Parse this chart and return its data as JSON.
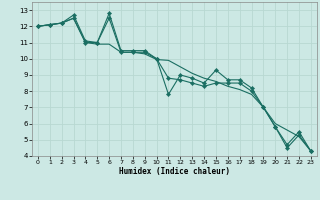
{
  "xlabel": "Humidex (Indice chaleur)",
  "background_color": "#cce8e4",
  "grid_color": "#b8d8d2",
  "line_color": "#1a6e62",
  "xlim": [
    -0.5,
    23.5
  ],
  "ylim": [
    4,
    13.5
  ],
  "xticks": [
    0,
    1,
    2,
    3,
    4,
    5,
    6,
    7,
    8,
    9,
    10,
    11,
    12,
    13,
    14,
    15,
    16,
    17,
    18,
    19,
    20,
    21,
    22,
    23
  ],
  "yticks": [
    4,
    5,
    6,
    7,
    8,
    9,
    10,
    11,
    12,
    13
  ],
  "series1_x": [
    0,
    1,
    2,
    3,
    4,
    5,
    6,
    7,
    8,
    9,
    10,
    11,
    12,
    13,
    14,
    15,
    16,
    17,
    18,
    19,
    20,
    21,
    22,
    23
  ],
  "series1_y": [
    12.0,
    12.1,
    12.2,
    12.5,
    11.0,
    11.0,
    12.8,
    10.5,
    10.5,
    10.5,
    10.0,
    7.8,
    9.0,
    8.8,
    8.5,
    9.3,
    8.7,
    8.7,
    8.2,
    7.0,
    5.8,
    4.7,
    5.5,
    4.3
  ],
  "series2_x": [
    0,
    1,
    2,
    3,
    4,
    5,
    6,
    7,
    8,
    9,
    10,
    11,
    12,
    13,
    14,
    15,
    16,
    17,
    18,
    19,
    20,
    21,
    22,
    23
  ],
  "series2_y": [
    12.0,
    12.1,
    12.2,
    12.7,
    11.1,
    11.0,
    12.5,
    10.4,
    10.4,
    10.4,
    10.0,
    8.8,
    8.7,
    8.5,
    8.3,
    8.5,
    8.5,
    8.5,
    8.0,
    7.0,
    5.8,
    4.5,
    5.3,
    4.3
  ],
  "series3_x": [
    0,
    1,
    2,
    3,
    4,
    5,
    6,
    7,
    8,
    9,
    10,
    11,
    12,
    13,
    14,
    15,
    16,
    17,
    18,
    19,
    20,
    21,
    22,
    23
  ],
  "series3_y": [
    12.0,
    12.1,
    12.2,
    12.5,
    11.0,
    10.9,
    10.9,
    10.4,
    10.4,
    10.3,
    9.95,
    9.9,
    9.5,
    9.1,
    8.8,
    8.6,
    8.3,
    8.1,
    7.8,
    7.0,
    6.0,
    5.6,
    5.2,
    4.3
  ]
}
